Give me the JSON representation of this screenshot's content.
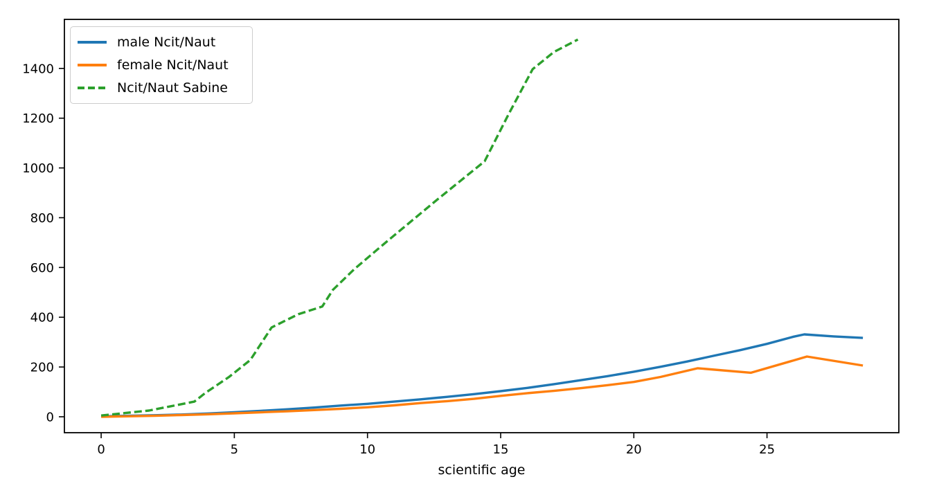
{
  "figure": {
    "background": "#ffffff",
    "spine_color": "#000000"
  },
  "chart_data": {
    "type": "line",
    "title": "",
    "xlabel": "scientific age",
    "ylabel": "",
    "grid": false,
    "legend_position": "upper-left",
    "xlim": [
      -1.38,
      29.95
    ],
    "ylim": [
      -64,
      1597
    ],
    "x_ticks": [
      0,
      5,
      10,
      15,
      20,
      25
    ],
    "y_ticks": [
      0,
      200,
      400,
      600,
      800,
      1000,
      1200,
      1400
    ],
    "series": [
      {
        "name": "male Ncit/Naut",
        "color": "#1f77b4",
        "style": "solid",
        "x": [
          0,
          1,
          2,
          3,
          4,
          5,
          6,
          7,
          8,
          9,
          10,
          11,
          12,
          13,
          14,
          15,
          16,
          17,
          18,
          19,
          20,
          21,
          22,
          23,
          24,
          25,
          26,
          26.4,
          27.5,
          28.6
        ],
        "y": [
          2,
          4,
          6,
          9,
          13,
          18,
          24,
          30,
          37,
          45,
          52,
          61,
          70,
          80,
          91,
          103,
          116,
          131,
          147,
          163,
          181,
          201,
          222,
          245,
          268,
          293,
          322,
          331,
          323,
          317
        ]
      },
      {
        "name": "female Ncit/Naut",
        "color": "#ff7f0e",
        "style": "solid",
        "x": [
          0,
          1,
          2,
          3,
          4,
          5,
          6,
          7,
          8,
          9,
          10,
          11,
          12,
          13,
          14,
          15,
          16,
          17,
          18,
          19,
          20,
          21,
          22.4,
          24.4,
          26.5,
          28.6
        ],
        "y": [
          0,
          2,
          4,
          7,
          10,
          14,
          18,
          22,
          27,
          32,
          38,
          46,
          55,
          63,
          72,
          84,
          95,
          104,
          115,
          127,
          140,
          160,
          195,
          177,
          242,
          206
        ]
      },
      {
        "name": "Ncit/Naut Sabine",
        "color": "#2ca02c",
        "style": "dashed",
        "x": [
          0,
          0.9,
          1.8,
          2.6,
          3.5,
          3.9,
          4.8,
          5.6,
          6.4,
          7.4,
          8.3,
          8.7,
          9.5,
          10.6,
          11.6,
          12.6,
          13.5,
          14.4,
          15.3,
          16.2,
          17.0,
          17.9
        ],
        "y": [
          5,
          15,
          25,
          42,
          61,
          95,
          160,
          228,
          359,
          412,
          443,
          510,
          593,
          693,
          782,
          871,
          949,
          1027,
          1216,
          1397,
          1466,
          1516
        ]
      }
    ]
  }
}
